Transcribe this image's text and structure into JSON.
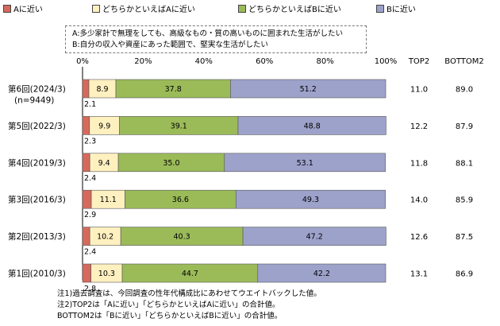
{
  "legend": [
    {
      "label": "Aに近い",
      "color": "#d56a5c"
    },
    {
      "label": "どちらかといえばAに近い",
      "color": "#fff0c0"
    },
    {
      "label": "どちらかといえばBに近い",
      "color": "#9bbb59"
    },
    {
      "label": "Bに近い",
      "color": "#9da2cb"
    }
  ],
  "description": {
    "line_a": "A:多少家計で無理をしても、高級なもの・質の高いものに囲まれた生活がしたい",
    "line_b": "B:自分の収入や資産にあった範囲で、堅実な生活がしたい"
  },
  "column_headers": {
    "top2": "TOP2",
    "bottom2": "BOTTOM2"
  },
  "notes": [
    "注1)過去調査は、今回調査の性年代構成比にあわせてウエイトバックした値。",
    "注2)TOP2は「Aに近い」「どちらかといえばAに近い」の合計値。",
    "BOTTOM2は「Bに近い」「どちらかといえばBに近い」の合計値。"
  ],
  "chart_data": {
    "type": "bar",
    "orientation": "horizontal",
    "stacked": true,
    "xlim": [
      0,
      100
    ],
    "x_ticks": [
      "0%",
      "20%",
      "40%",
      "60%",
      "80%",
      "100%"
    ],
    "categories": [
      "第6回(2024/3)",
      "第5回(2022/3)",
      "第4回(2019/3)",
      "第3回(2016/3)",
      "第2回(2013/3)",
      "第1回(2010/3)"
    ],
    "category_sublabels": [
      "(n=9449)",
      "",
      "",
      "",
      "",
      ""
    ],
    "series": [
      {
        "name": "Aに近い",
        "values": [
          2.1,
          2.3,
          2.4,
          2.9,
          2.4,
          2.8
        ],
        "color": "#d56a5c"
      },
      {
        "name": "どちらかといえばAに近い",
        "values": [
          8.9,
          9.9,
          9.4,
          11.1,
          10.2,
          10.3
        ],
        "color": "#fff0c0"
      },
      {
        "name": "どちらかといえばBに近い",
        "values": [
          37.8,
          39.1,
          35.0,
          36.6,
          40.3,
          44.7
        ],
        "color": "#9bbb59"
      },
      {
        "name": "Bに近い",
        "values": [
          51.2,
          48.8,
          53.1,
          49.3,
          47.2,
          42.2
        ],
        "color": "#9da2cb"
      }
    ],
    "top2": [
      "11.0",
      "12.2",
      "11.8",
      "14.0",
      "12.6",
      "13.1"
    ],
    "bottom2": [
      "89.0",
      "87.9",
      "88.1",
      "85.9",
      "87.5",
      "86.9"
    ],
    "grid": false,
    "legend_position": "top"
  }
}
